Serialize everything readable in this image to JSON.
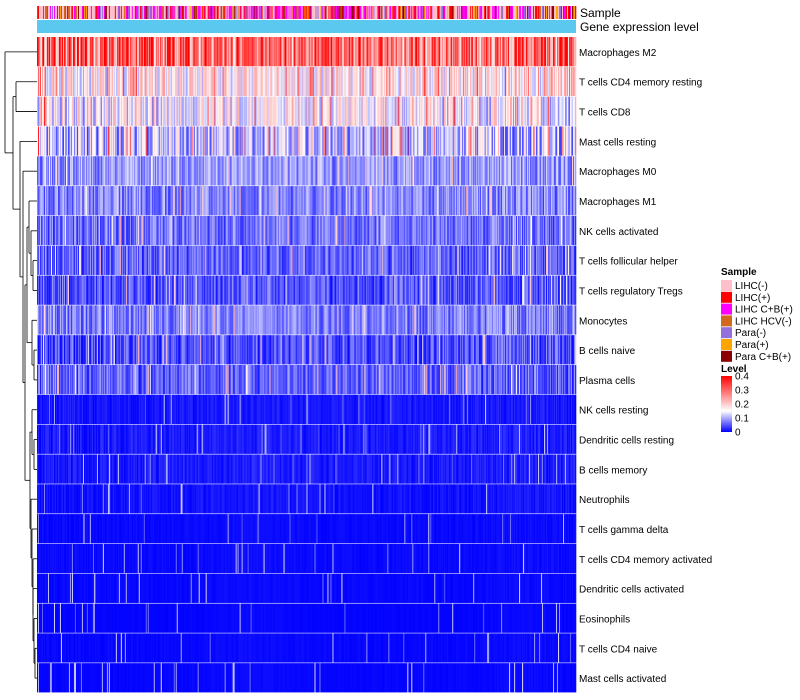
{
  "chart_data": {
    "type": "heatmap",
    "title": "",
    "annotation_rows": [
      {
        "label": "Sample",
        "kind": "categorical"
      },
      {
        "label": "Gene expression level",
        "kind": "constant",
        "color": "#5bc8f0"
      }
    ],
    "rows": [
      {
        "name": "Macrophages M2",
        "mean": 0.3
      },
      {
        "name": "T cells CD4 memory resting",
        "mean": 0.17
      },
      {
        "name": "T cells CD8",
        "mean": 0.15
      },
      {
        "name": "Mast cells resting",
        "mean": 0.11
      },
      {
        "name": "Macrophages M0",
        "mean": 0.09
      },
      {
        "name": "Macrophages M1",
        "mean": 0.08
      },
      {
        "name": "NK cells activated",
        "mean": 0.07
      },
      {
        "name": "T cells follicular helper",
        "mean": 0.06
      },
      {
        "name": "T cells regulatory  Tregs",
        "mean": 0.055
      },
      {
        "name": "Monocytes",
        "mean": 0.08
      },
      {
        "name": "B cells naive",
        "mean": 0.05
      },
      {
        "name": "Plasma cells",
        "mean": 0.06
      },
      {
        "name": "NK cells resting",
        "mean": 0.025
      },
      {
        "name": "Dendritic cells resting",
        "mean": 0.03
      },
      {
        "name": "B cells memory",
        "mean": 0.03
      },
      {
        "name": "Neutrophils",
        "mean": 0.02
      },
      {
        "name": "T cells gamma delta",
        "mean": 0.01
      },
      {
        "name": "T cells CD4 memory activated",
        "mean": 0.01
      },
      {
        "name": "Dendritic cells activated",
        "mean": 0.008
      },
      {
        "name": "Eosinophils",
        "mean": 0.005
      },
      {
        "name": "T cells CD4 naive",
        "mean": 0.008
      },
      {
        "name": "Mast cells activated",
        "mean": 0.006
      }
    ],
    "n_samples": 540,
    "sample_groups": [
      {
        "name": "LIHC(-)",
        "color": "#ffc0cb"
      },
      {
        "name": "LIHC(+)",
        "color": "#ff0000"
      },
      {
        "name": "LIHC C+B(+)",
        "color": "#ff00ff"
      },
      {
        "name": "LIHC HCV(-)",
        "color": "#d2691e"
      },
      {
        "name": "Para(-)",
        "color": "#9370db"
      },
      {
        "name": "Para(+)",
        "color": "#ffa500"
      },
      {
        "name": "Para C+B(+)",
        "color": "#8b0000"
      }
    ],
    "sample_group_weights": [
      0.3,
      0.15,
      0.3,
      0.05,
      0.08,
      0.05,
      0.07
    ],
    "color_scale": {
      "min": 0,
      "max": 0.4,
      "stops": [
        {
          "value": 0,
          "color": "#0000ff"
        },
        {
          "value": 0.15,
          "color": "#ffffff"
        },
        {
          "value": 0.4,
          "color": "#ff0000"
        }
      ]
    },
    "legends": {
      "sample_title": "Sample",
      "level_title": "Level",
      "level_ticks": [
        "0.4",
        "0.3",
        "0.2",
        "0.1",
        "0"
      ],
      "level_tick_values": [
        0.4,
        0.3,
        0.2,
        0.1,
        0
      ]
    },
    "row_dendrogram": true
  }
}
